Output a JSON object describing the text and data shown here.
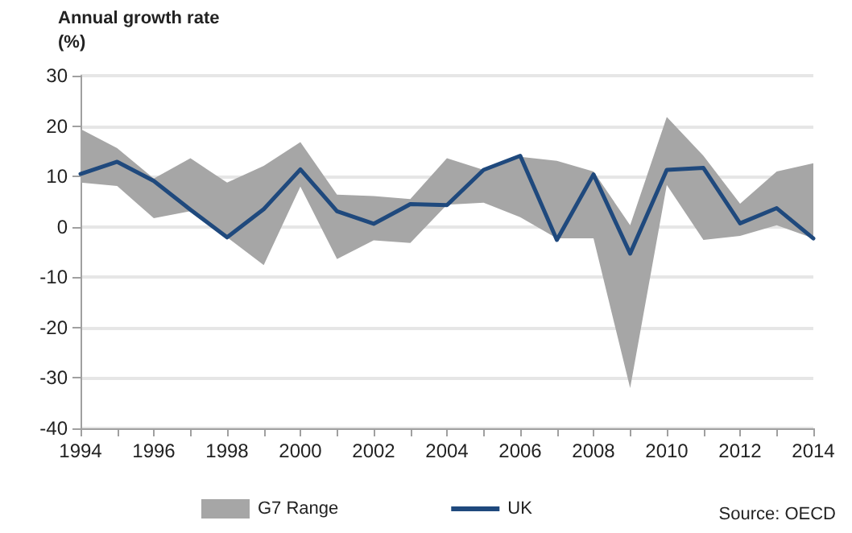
{
  "chart_data": {
    "type": "line",
    "ylabel": "Annual growth rate\n(%)",
    "x": [
      1994,
      1995,
      1996,
      1997,
      1998,
      1999,
      2000,
      2001,
      2002,
      2003,
      2004,
      2005,
      2006,
      2007,
      2008,
      2009,
      2010,
      2011,
      2012,
      2013,
      2014
    ],
    "series": [
      {
        "name": "G7 Range",
        "type": "area",
        "color": "#a6a6a6",
        "values": [
          null,
          null,
          null,
          null,
          null,
          null,
          null,
          null,
          null,
          null,
          null,
          null,
          null,
          null,
          null,
          null,
          null,
          null,
          null,
          null,
          null
        ],
        "lower": [
          8.8,
          8.1,
          1.7,
          3.1,
          -2.1,
          -7.6,
          8.0,
          -6.4,
          -2.7,
          -3.2,
          4.4,
          4.8,
          1.9,
          -2.3,
          -2.3,
          -32,
          8.3,
          -2.6,
          -1.8,
          0.3,
          -2.3
        ],
        "upper": [
          19.4,
          15.6,
          9.6,
          13.6,
          8.8,
          12.1,
          16.8,
          6.4,
          6.1,
          5.5,
          13.6,
          11.3,
          13.9,
          13.1,
          11.0,
          0.3,
          21.8,
          14.1,
          4.6,
          11.0,
          12.6
        ]
      },
      {
        "name": "UK",
        "type": "line",
        "color": "#1f497d",
        "values": [
          10.5,
          12.9,
          9.1,
          3.4,
          -2.1,
          3.5,
          11.4,
          3.1,
          0.6,
          4.5,
          4.3,
          11.3,
          14.1,
          -2.6,
          10.4,
          -5.3,
          11.3,
          11.7,
          0.7,
          3.7,
          -2.3
        ]
      }
    ],
    "xlim": [
      1994,
      2014
    ],
    "xticks": [
      1994,
      {
        "value": 1995,
        "label": null
      },
      1996,
      {
        "value": 1997,
        "label": null
      },
      1998,
      {
        "value": 1999,
        "label": null
      },
      2000,
      {
        "value": 2001,
        "label": null
      },
      2002,
      {
        "value": 2003,
        "label": null
      },
      2004,
      {
        "value": 2005,
        "label": null
      },
      2006,
      {
        "value": 2007,
        "label": null
      },
      2008,
      {
        "value": 2009,
        "label": null
      },
      2010,
      {
        "value": 2011,
        "label": null
      },
      2012,
      {
        "value": 2013,
        "label": null
      },
      2014
    ],
    "ylim": [
      -40,
      30
    ],
    "yticks": [
      -40,
      -30,
      -20,
      -10,
      0,
      10,
      20,
      30
    ],
    "grid": "y",
    "legend": "bottom",
    "marker": "none",
    "line_style": "solid",
    "annotations": [
      "Source: OECD"
    ]
  }
}
